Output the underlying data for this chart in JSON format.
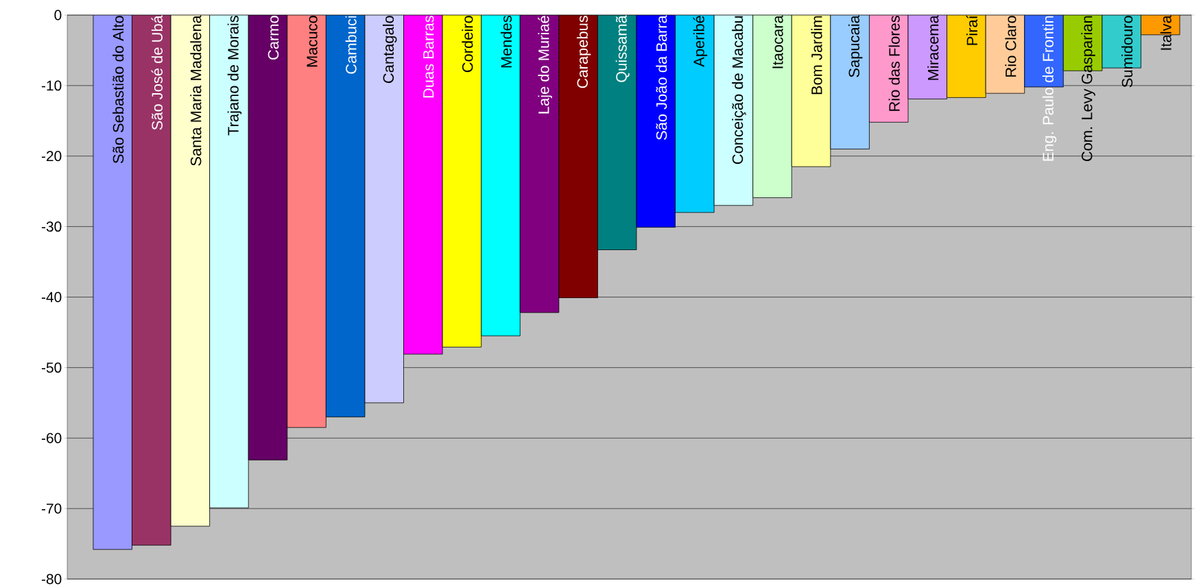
{
  "chart_data": {
    "type": "bar",
    "categories": [
      "São Sebastião do Alto",
      "São José de Ubá",
      "Santa Maria Madalena",
      "Trajano de Morais",
      "Carmo",
      "Macuco",
      "Cambuci",
      "Cantagalo",
      "Duas Barras",
      "Cordeiro",
      "Mendes",
      "Laje do Muriaé",
      "Carapebus",
      "Quissamã",
      "São João da Barra",
      "Aperibé",
      "Conceição de Macabu",
      "Itaocara",
      "Bom Jardim",
      "Sapucaia",
      "Rio das Flores",
      "Miracema",
      "Piraí",
      "Rio Claro",
      "Eng. Paulo de Frontin",
      "Com. Levy Gasparian",
      "Sumidouro",
      "Italva"
    ],
    "values": [
      -75.8,
      -75.2,
      -72.5,
      -69.9,
      -63.1,
      -58.5,
      -57.0,
      -55.0,
      -48.1,
      -47.1,
      -45.5,
      -42.2,
      -40.1,
      -33.3,
      -30.1,
      -28.0,
      -27.0,
      -25.9,
      -21.5,
      -19.0,
      -15.2,
      -11.9,
      -11.7,
      -11.1,
      -10.2,
      -7.9,
      -7.5,
      -2.8
    ],
    "colors": [
      "#9999ff",
      "#993366",
      "#ffffcc",
      "#ccffff",
      "#660066",
      "#ff8080",
      "#0066cc",
      "#ccccff",
      "#ff00ff",
      "#ffff00",
      "#00ffff",
      "#800080",
      "#800000",
      "#008080",
      "#0000ff",
      "#00ccff",
      "#ccffff",
      "#ccffcc",
      "#ffff99",
      "#99ccff",
      "#ff99cc",
      "#cc99ff",
      "#ffcc00",
      "#ffcc99",
      "#3366ff",
      "#99cc00",
      "#33cccc",
      "#ff9900"
    ],
    "ylim": [
      -80,
      0
    ],
    "yticks": [
      -80,
      -70,
      -60,
      -50,
      -40,
      -30,
      -20,
      -10,
      0
    ],
    "grid": "y"
  }
}
